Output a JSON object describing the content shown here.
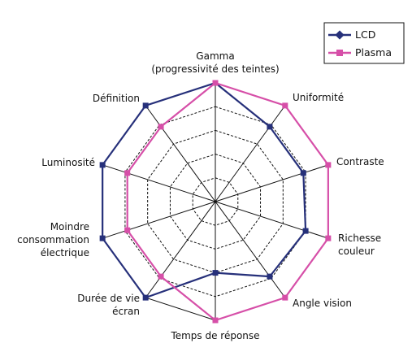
{
  "chart_data": {
    "type": "radar",
    "categories": [
      [
        "Gamma",
        "(progressivité des teintes)"
      ],
      [
        "Uniformité"
      ],
      [
        "Contraste"
      ],
      [
        "Richesse",
        "couleur"
      ],
      [
        "Angle vision"
      ],
      [
        "Temps de réponse"
      ],
      [
        "Durée de vie",
        "écran"
      ],
      [
        "Moindre",
        "consommation",
        "électrique"
      ],
      [
        "Luminosité"
      ],
      [
        "Définition"
      ]
    ],
    "rings": 5,
    "rmax": 5,
    "grid": true,
    "legend_position": "top-right",
    "series": [
      {
        "name": "LCD",
        "color": "#26307a",
        "marker": "diamond",
        "values": [
          5,
          3.9,
          3.9,
          4,
          3.9,
          3,
          5,
          5,
          5,
          5
        ]
      },
      {
        "name": "Plasma",
        "color": "#d64fa8",
        "marker": "square",
        "values": [
          5,
          5,
          5,
          5,
          5,
          5,
          3.9,
          3.9,
          3.9,
          3.9
        ]
      }
    ]
  }
}
